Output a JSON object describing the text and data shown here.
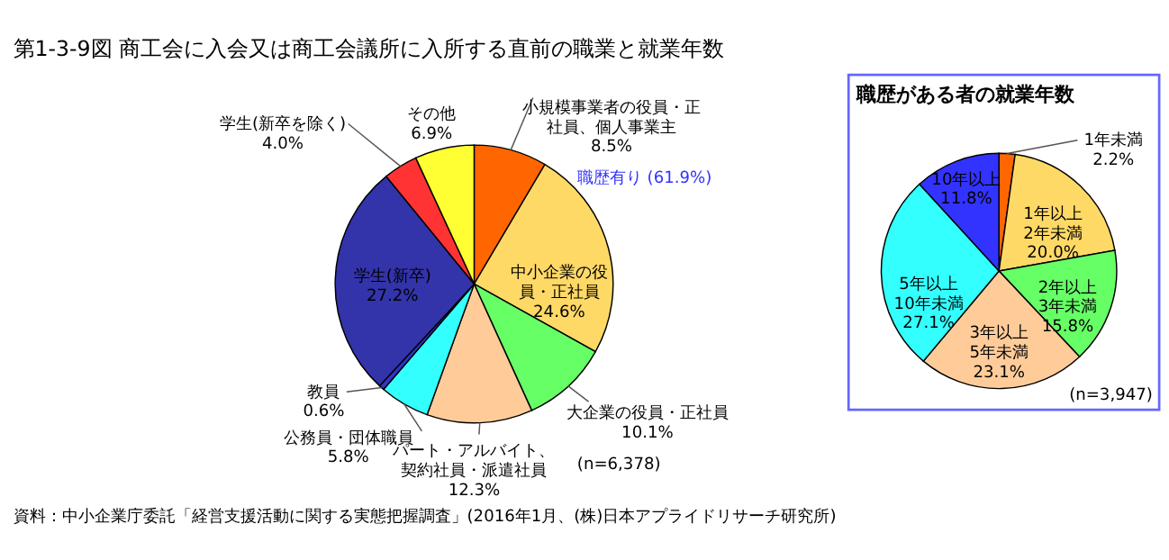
{
  "chart_data": [
    {
      "type": "pie",
      "title": "商工会に入会又は商工会議所に入所する直前の職業と就業年数",
      "categories": [
        "小規模事業者の役員・正社員、個人事業主",
        "中小企業の役員・正社員",
        "大企業の役員・正社員",
        "パート・アルバイト、契約社員・派遣社員",
        "公務員・団体職員",
        "教員",
        "学生(新卒)",
        "学生(新卒を除く)",
        "その他"
      ],
      "values": [
        8.5,
        24.6,
        10.1,
        12.3,
        5.8,
        0.6,
        27.2,
        4.0,
        6.9
      ],
      "value_labels": [
        "8.5%",
        "24.6%",
        "10.1%",
        "12.3%",
        "5.8%",
        "0.6%",
        "27.2%",
        "4.0%",
        "6.9%"
      ],
      "colors": [
        "#ff6600",
        "#ffd966",
        "#66ff66",
        "#ffcc99",
        "#33ffff",
        "#3333cc",
        "#3333aa",
        "#ff3333",
        "#ffff33"
      ],
      "annotations": [
        "第1-3-9図",
        "職歴有り (61.9%)",
        "(n=6,378)",
        "資料：中小企業庁委託「経営支援活動に関する実態把握調査」(2016年1月、(株)日本アプライドリサーチ研究所)"
      ]
    },
    {
      "type": "pie",
      "title": "職歴がある者の就業年数",
      "categories": [
        "1年未満",
        "1年以上2年未満",
        "2年以上3年未満",
        "3年以上5年未満",
        "5年以上10年未満",
        "10年以上"
      ],
      "values": [
        2.2,
        20.0,
        15.8,
        23.1,
        27.1,
        11.8
      ],
      "value_labels": [
        "2.2%",
        "20.0%",
        "15.8%",
        "23.1%",
        "27.1%",
        "11.8%"
      ],
      "colors": [
        "#ff6600",
        "#ffd966",
        "#66ff66",
        "#ffcc99",
        "#33ffff",
        "#3333ff"
      ],
      "annotations": [
        "(n=3,947)"
      ]
    }
  ]
}
